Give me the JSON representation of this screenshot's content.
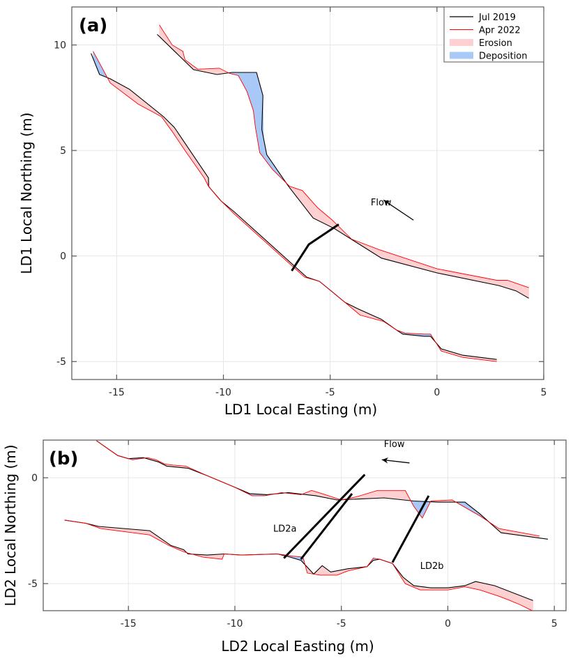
{
  "colors": {
    "jul2019": "#000000",
    "apr2022": "#ff0000",
    "erosion": "#ffd0d2",
    "deposition": "#a9c9f7",
    "grid": "#e6e6e6",
    "axis": "#555555"
  },
  "chart_data": [
    {
      "type": "line",
      "panel_label": "(a)",
      "xlabel": "LD1 Local Easting (m)",
      "ylabel": "LD1 Local Northing (m)",
      "xlim": [
        -17.1,
        5
      ],
      "ylim": [
        -5.85,
        11.8
      ],
      "xticks": [
        -15,
        -10,
        -5,
        0,
        5
      ],
      "xtick_labels": [
        "-15",
        "-10",
        "-5",
        "0",
        "5"
      ],
      "yticks": [
        -5,
        0,
        5,
        10
      ],
      "ytick_labels": [
        "-5",
        "0",
        "5",
        "10"
      ],
      "grid": true,
      "legend": {
        "placement": "top-right",
        "entries": [
          {
            "label": "Jul 2019",
            "kind": "line",
            "color_key": "jul2019"
          },
          {
            "label": "Apr 2022",
            "kind": "line",
            "color_key": "apr2022"
          },
          {
            "label": "Erosion",
            "kind": "patch",
            "color_key": "erosion"
          },
          {
            "label": "Deposition",
            "kind": "patch",
            "color_key": "deposition"
          }
        ]
      },
      "series": [
        {
          "name": "Jul 2019 upper bank",
          "color_key": "jul2019",
          "x": [
            -13.1,
            -11.4,
            -10.3,
            -9.6,
            -8.77,
            -8.45,
            -8.15,
            -8.2,
            -7.97,
            -6.95,
            -5.8,
            -4.8,
            -2.6,
            0.0,
            2.9,
            3.7,
            4.3
          ],
          "y": [
            10.5,
            8.83,
            8.6,
            8.7,
            8.7,
            8.7,
            7.6,
            6.0,
            4.8,
            3.3,
            1.8,
            1.3,
            -0.1,
            -0.8,
            -1.4,
            -1.65,
            -2.0
          ]
        },
        {
          "name": "Apr 2022 upper bank",
          "color_key": "apr2022",
          "x": [
            -13.0,
            -12.4,
            -11.9,
            -11.8,
            -11.2,
            -10.2,
            -9.7,
            -9.3,
            -8.9,
            -8.6,
            -8.5,
            -8.3,
            -7.7,
            -6.9,
            -6.3,
            -5.6,
            -4.9,
            -4.0,
            -2.7,
            0.0,
            2.8,
            3.3,
            4.3
          ],
          "y": [
            10.95,
            10.0,
            9.7,
            9.3,
            8.85,
            8.9,
            8.65,
            8.55,
            7.8,
            6.9,
            6.1,
            4.9,
            4.1,
            3.3,
            3.1,
            2.3,
            1.7,
            0.8,
            0.3,
            -0.6,
            -1.15,
            -1.15,
            -1.5
          ]
        },
        {
          "name": "Jul 2019 lower bank",
          "color_key": "jul2019",
          "x": [
            -16.2,
            -15.8,
            -15.3,
            -14.4,
            -12.8,
            -12.3,
            -10.7,
            -10.7,
            -10.1,
            -9.5,
            -6.1,
            -5.5,
            -4.9,
            -4.3,
            -3.7,
            -2.6,
            -1.9,
            -1.6,
            -0.6,
            -0.3,
            0.2,
            1.2,
            2.8
          ],
          "y": [
            9.6,
            8.6,
            8.4,
            7.9,
            6.6,
            6.1,
            3.7,
            3.3,
            2.6,
            2.1,
            -1.0,
            -1.2,
            -1.7,
            -2.2,
            -2.5,
            -3.0,
            -3.5,
            -3.7,
            -3.8,
            -3.8,
            -4.4,
            -4.7,
            -4.9
          ]
        },
        {
          "name": "Apr 2022 lower bank",
          "color_key": "apr2022",
          "x": [
            -16.1,
            -15.3,
            -14.0,
            -12.9,
            -12.4,
            -11.8,
            -10.9,
            -10.7,
            -10.2,
            -9.5,
            -6.2,
            -5.5,
            -4.9,
            -4.3,
            -3.6,
            -2.5,
            -1.9,
            -1.5,
            -0.6,
            -0.3,
            0.2,
            1.2,
            2.8
          ],
          "y": [
            9.7,
            8.2,
            7.2,
            6.6,
            5.9,
            5.0,
            3.7,
            3.3,
            2.7,
            2.0,
            -1.0,
            -1.2,
            -1.7,
            -2.2,
            -2.8,
            -3.1,
            -3.5,
            -3.65,
            -3.7,
            -3.7,
            -4.5,
            -4.8,
            -5.0
          ]
        }
      ],
      "annotations": [
        {
          "text": "Flow",
          "x": -3.1,
          "y": 2.4
        },
        {
          "kind": "arrow",
          "from": [
            -1.1,
            1.7
          ],
          "to": [
            -2.5,
            2.65
          ]
        },
        {
          "kind": "transect",
          "x": [
            -6.8,
            -6.0,
            -4.6
          ],
          "y": [
            -0.7,
            0.55,
            1.5
          ]
        }
      ]
    },
    {
      "type": "line",
      "panel_label": "(b)",
      "xlabel": "LD2 Local Easting (m)",
      "ylabel": "LD2 Local Northing (m)",
      "xlim": [
        -19.0,
        5.55
      ],
      "ylim": [
        -6.28,
        1.78
      ],
      "xticks": [
        -15,
        -10,
        -5,
        0,
        5
      ],
      "xtick_labels": [
        "-15",
        "-10",
        "-5",
        "0",
        "5"
      ],
      "yticks": [
        -5,
        0
      ],
      "ytick_labels": [
        "-5",
        "0"
      ],
      "grid": true,
      "series": [
        {
          "name": "Jul 2019 upper bank",
          "color_key": "jul2019",
          "x": [
            -16.5,
            -16.0,
            -15.5,
            -15.0,
            -14.3,
            -13.6,
            -13.2,
            -12.7,
            -12.2,
            -11.3,
            -10.0,
            -9.3,
            -8.5,
            -7.5,
            -6.2,
            -5.2,
            -3.0,
            -1.6,
            -0.5,
            0.0,
            0.8,
            1.5,
            2.5,
            4.7
          ],
          "y": [
            1.75,
            1.4,
            1.05,
            0.9,
            0.95,
            0.75,
            0.55,
            0.5,
            0.45,
            0.1,
            -0.45,
            -0.75,
            -0.8,
            -0.7,
            -0.85,
            -1.05,
            -0.95,
            -1.1,
            -1.15,
            -1.15,
            -1.15,
            -1.7,
            -2.6,
            -2.9
          ]
        },
        {
          "name": "Apr 2022 upper bank",
          "color_key": "apr2022",
          "x": [
            -16.5,
            -16.0,
            -15.5,
            -14.8,
            -14.1,
            -13.7,
            -13.3,
            -12.9,
            -12.3,
            -11.3,
            -10.0,
            -9.2,
            -8.6,
            -7.8,
            -6.9,
            -6.4,
            -5.9,
            -5.0,
            -4.3,
            -3.3,
            -2.5,
            -2.0,
            -1.6,
            -1.2,
            -0.8,
            0.2,
            1.5,
            2.4,
            4.3
          ],
          "y": [
            1.75,
            1.4,
            1.05,
            0.85,
            0.95,
            0.85,
            0.65,
            0.6,
            0.55,
            0.1,
            -0.45,
            -0.85,
            -0.85,
            -0.7,
            -0.8,
            -0.6,
            -0.75,
            -1.05,
            -0.9,
            -0.6,
            -0.6,
            -0.6,
            -1.35,
            -1.9,
            -1.1,
            -1.05,
            -1.8,
            -2.4,
            -2.75
          ]
        },
        {
          "name": "Jul 2019 lower bank",
          "color_key": "jul2019",
          "x": [
            -18.0,
            -17.0,
            -16.4,
            -14.0,
            -13.0,
            -12.7,
            -12.4,
            -12.2,
            -11.3,
            -10.5,
            -9.7,
            -8.0,
            -7.4,
            -6.9,
            -6.3,
            -5.9,
            -5.5,
            -4.7,
            -3.8,
            -3.5,
            -3.2,
            -2.6,
            -2.1,
            -1.6,
            -0.8,
            0.0,
            0.8,
            1.3,
            2.2,
            4.0
          ],
          "y": [
            -2.0,
            -2.15,
            -2.3,
            -2.5,
            -3.2,
            -3.3,
            -3.4,
            -3.6,
            -3.65,
            -3.6,
            -3.65,
            -3.6,
            -3.75,
            -3.9,
            -4.55,
            -4.15,
            -4.45,
            -4.3,
            -4.2,
            -3.9,
            -3.85,
            -4.05,
            -4.7,
            -5.1,
            -5.2,
            -5.2,
            -5.1,
            -4.9,
            -5.1,
            -5.8
          ]
        },
        {
          "name": "Apr 2022 lower bank",
          "color_key": "apr2022",
          "x": [
            -18.0,
            -17.0,
            -16.3,
            -14.0,
            -13.1,
            -12.4,
            -11.5,
            -10.6,
            -10.5,
            -9.7,
            -8.0,
            -7.3,
            -6.8,
            -6.6,
            -6.0,
            -5.2,
            -4.7,
            -3.8,
            -3.5,
            -3.2,
            -2.6,
            -2.0,
            -1.3,
            0.0,
            0.8,
            1.5,
            2.4,
            2.8,
            3.4,
            4.0
          ],
          "y": [
            -2.0,
            -2.15,
            -2.4,
            -2.7,
            -3.2,
            -3.5,
            -3.75,
            -3.85,
            -3.6,
            -3.65,
            -3.6,
            -3.7,
            -3.75,
            -4.5,
            -4.6,
            -4.6,
            -4.4,
            -4.2,
            -3.8,
            -3.85,
            -4.05,
            -5.0,
            -5.3,
            -5.3,
            -5.15,
            -5.3,
            -5.6,
            -5.75,
            -6.0,
            -6.3
          ]
        }
      ],
      "annotations": [
        {
          "text": "Flow",
          "x": -3.0,
          "y": 1.45
        },
        {
          "kind": "arrow",
          "from": [
            -1.8,
            0.7
          ],
          "to": [
            -3.1,
            0.85
          ]
        },
        {
          "text": "LD2a",
          "x": -8.2,
          "y": -2.55
        },
        {
          "text": "LD2b",
          "x": -1.3,
          "y": -4.3
        },
        {
          "kind": "transect",
          "x": [
            -7.7,
            -3.9
          ],
          "y": [
            -3.8,
            0.15
          ]
        },
        {
          "kind": "transect",
          "x": [
            -6.9,
            -4.5
          ],
          "y": [
            -3.85,
            -0.75
          ]
        },
        {
          "kind": "transect",
          "x": [
            -2.6,
            -0.9
          ],
          "y": [
            -4.0,
            -0.85
          ]
        }
      ]
    }
  ]
}
